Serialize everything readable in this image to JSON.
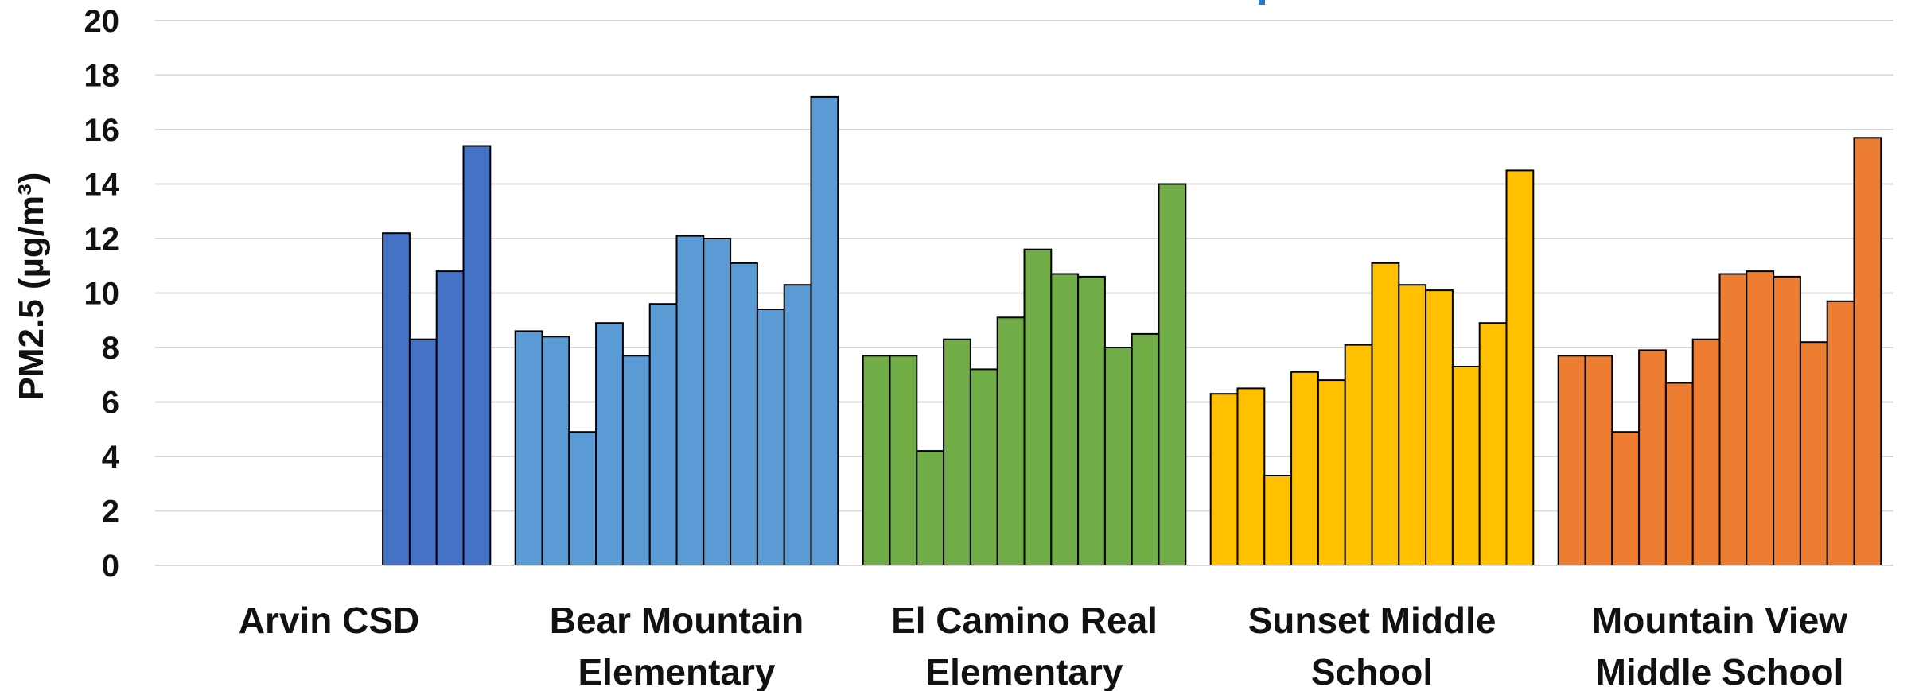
{
  "chart_data": {
    "type": "bar",
    "ylabel": "PM2.5 (µg/m³)",
    "ylim": [
      0,
      20
    ],
    "yticks": [
      0,
      2,
      4,
      6,
      8,
      10,
      12,
      14,
      16,
      18,
      20
    ],
    "grid": true,
    "legend": "none",
    "groups": [
      {
        "label_lines": [
          "Arvin CSD"
        ],
        "color": "#4472C4",
        "values": [
          null,
          null,
          null,
          null,
          null,
          null,
          null,
          null,
          12.2,
          8.3,
          10.8,
          15.4
        ]
      },
      {
        "label_lines": [
          "Bear Mountain",
          "Elementary"
        ],
        "color": "#5B9BD5",
        "values": [
          8.6,
          8.4,
          4.9,
          8.9,
          7.7,
          9.6,
          12.1,
          12.0,
          11.1,
          9.4,
          10.3,
          17.2
        ]
      },
      {
        "label_lines": [
          "El Camino Real",
          "Elementary"
        ],
        "color": "#70AD47",
        "values": [
          7.7,
          7.7,
          4.2,
          8.3,
          7.2,
          9.1,
          11.6,
          10.7,
          10.6,
          8.0,
          8.5,
          14.0
        ]
      },
      {
        "label_lines": [
          "Sunset Middle",
          "School"
        ],
        "color": "#FFC000",
        "values": [
          6.3,
          6.5,
          3.3,
          7.1,
          6.8,
          8.1,
          11.1,
          10.3,
          10.1,
          7.3,
          8.9,
          14.5
        ]
      },
      {
        "label_lines": [
          "Mountain View",
          "Middle School"
        ],
        "color": "#ED7D31",
        "values": [
          7.7,
          7.7,
          4.9,
          7.9,
          6.7,
          8.3,
          10.7,
          10.8,
          10.6,
          8.2,
          9.7,
          15.7
        ]
      }
    ]
  },
  "partial_title_color": "#2F77C8"
}
